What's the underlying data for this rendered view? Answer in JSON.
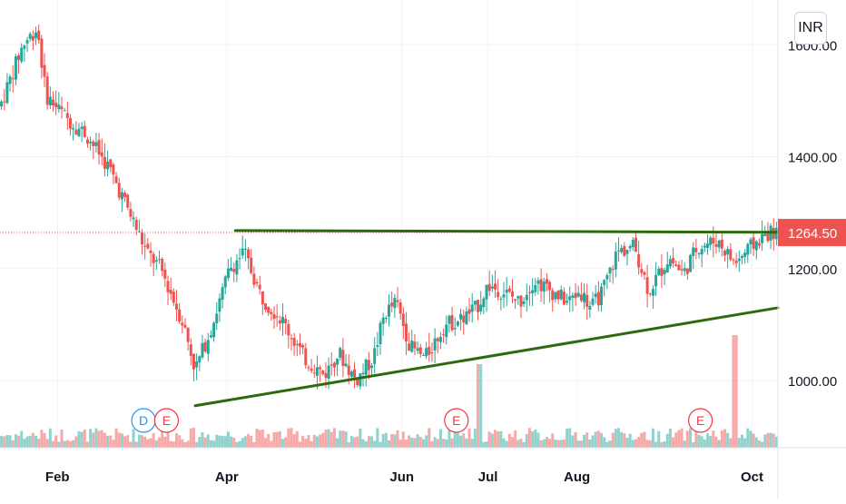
{
  "currency": "INR",
  "last_price": "1264.50",
  "colors": {
    "up": "#26a69a",
    "down": "#ef5350",
    "trendline": "#2d6a0f",
    "event_d": "#2196f3",
    "event_e": "#f23645",
    "grid": "#f0f3fa"
  },
  "events": [
    {
      "label": "D",
      "x_day": 62,
      "color": "#2196f3"
    },
    {
      "label": "E",
      "x_day": 70,
      "color": "#f23645"
    },
    {
      "label": "E",
      "x_day": 171,
      "color": "#f23645"
    },
    {
      "label": "E",
      "x_day": 256,
      "color": "#f23645"
    }
  ],
  "chart_data": {
    "type": "candlestick",
    "x_axis": {
      "tick_labels": [
        "Feb",
        "Apr",
        "Jun",
        "Jul",
        "Aug",
        "Oct"
      ],
      "tick_days": [
        32,
        91,
        152,
        182,
        213,
        274
      ],
      "domain_days": [
        12,
        283
      ]
    },
    "y_axis": {
      "tick_labels": [
        "1000.00",
        "1200.00",
        "1400.00",
        "1600.00"
      ],
      "tick_values": [
        1000,
        1200,
        1400,
        1600
      ],
      "range": [
        880,
        1680
      ]
    },
    "last_price_line": 1264.5,
    "trendlines": [
      {
        "from": {
          "day": 94,
          "price": 1268
        },
        "to": {
          "day": 283,
          "price": 1265
        }
      },
      {
        "from": {
          "day": 80,
          "price": 955
        },
        "to": {
          "day": 283,
          "price": 1130
        }
      }
    ],
    "volume_spikes": [
      {
        "day": 268,
        "relative": 0.4
      },
      {
        "day": 179,
        "relative": 0.2
      }
    ],
    "price_path": [
      {
        "day": 12,
        "price": 1490
      },
      {
        "day": 20,
        "price": 1600
      },
      {
        "day": 25,
        "price": 1630
      },
      {
        "day": 28,
        "price": 1510
      },
      {
        "day": 35,
        "price": 1470
      },
      {
        "day": 42,
        "price": 1440
      },
      {
        "day": 50,
        "price": 1380
      },
      {
        "day": 58,
        "price": 1290
      },
      {
        "day": 63,
        "price": 1230
      },
      {
        "day": 68,
        "price": 1200
      },
      {
        "day": 72,
        "price": 1150
      },
      {
        "day": 76,
        "price": 1100
      },
      {
        "day": 80,
        "price": 1020
      },
      {
        "day": 86,
        "price": 1100
      },
      {
        "day": 92,
        "price": 1200
      },
      {
        "day": 97,
        "price": 1230
      },
      {
        "day": 103,
        "price": 1150
      },
      {
        "day": 110,
        "price": 1110
      },
      {
        "day": 118,
        "price": 1040
      },
      {
        "day": 125,
        "price": 1010
      },
      {
        "day": 130,
        "price": 1050
      },
      {
        "day": 136,
        "price": 1000
      },
      {
        "day": 142,
        "price": 1040
      },
      {
        "day": 146,
        "price": 1120
      },
      {
        "day": 150,
        "price": 1140
      },
      {
        "day": 155,
        "price": 1060
      },
      {
        "day": 160,
        "price": 1040
      },
      {
        "day": 167,
        "price": 1100
      },
      {
        "day": 173,
        "price": 1110
      },
      {
        "day": 178,
        "price": 1130
      },
      {
        "day": 182,
        "price": 1170
      },
      {
        "day": 187,
        "price": 1160
      },
      {
        "day": 193,
        "price": 1140
      },
      {
        "day": 198,
        "price": 1180
      },
      {
        "day": 204,
        "price": 1160
      },
      {
        "day": 210,
        "price": 1140
      },
      {
        "day": 214,
        "price": 1160
      },
      {
        "day": 218,
        "price": 1130
      },
      {
        "day": 222,
        "price": 1160
      },
      {
        "day": 227,
        "price": 1230
      },
      {
        "day": 233,
        "price": 1240
      },
      {
        "day": 238,
        "price": 1160
      },
      {
        "day": 245,
        "price": 1220
      },
      {
        "day": 250,
        "price": 1190
      },
      {
        "day": 255,
        "price": 1240
      },
      {
        "day": 262,
        "price": 1250
      },
      {
        "day": 268,
        "price": 1210
      },
      {
        "day": 272,
        "price": 1230
      },
      {
        "day": 276,
        "price": 1250
      },
      {
        "day": 280,
        "price": 1264
      }
    ]
  }
}
